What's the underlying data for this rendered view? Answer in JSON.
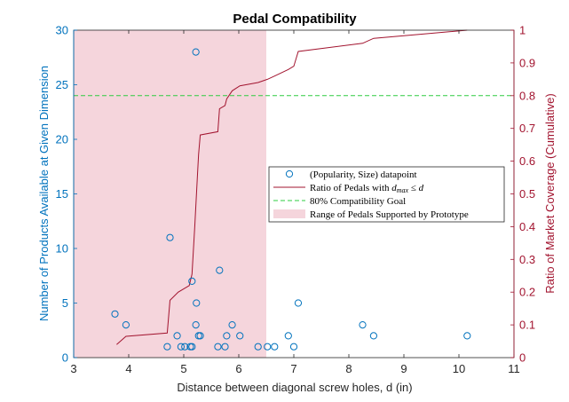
{
  "chart_data": {
    "type": "scatter",
    "title": "Pedal Compatibility",
    "xlabel": "Distance between diagonal screw holes, d (in)",
    "ylabel_left": "Number of Products Available at Given Dimension",
    "ylabel_right": "Ratio of Market Coverage (Cumulative)",
    "xlim": [
      3,
      11
    ],
    "ylim_left": [
      0,
      30
    ],
    "ylim_right": [
      0,
      1
    ],
    "x_ticks": [
      3,
      4,
      5,
      6,
      7,
      8,
      9,
      10,
      11
    ],
    "y_left_ticks": [
      0,
      5,
      10,
      15,
      20,
      25,
      30
    ],
    "y_right_ticks": [
      0,
      0.1,
      0.2,
      0.3,
      0.4,
      0.5,
      0.6,
      0.7,
      0.8,
      0.9,
      1
    ],
    "grid": false,
    "legend_placement": "center-right",
    "colors": {
      "left_axis": "#0072BD",
      "right_axis": "#A2142F",
      "goal_line": "#2ECC40",
      "support_region": "#F5D5DC"
    },
    "supported_range": {
      "name": "Range of Pedals Supported by Prototype",
      "x_range": [
        3,
        6.5
      ]
    },
    "goal": {
      "name": "80% Compatibility Goal",
      "value": 0.8
    },
    "series": [
      {
        "name": "(Popularity, Size) datapoint",
        "axis": "left",
        "points": [
          {
            "x": 3.75,
            "y": 4
          },
          {
            "x": 3.95,
            "y": 3
          },
          {
            "x": 4.7,
            "y": 1
          },
          {
            "x": 4.75,
            "y": 11
          },
          {
            "x": 4.88,
            "y": 2
          },
          {
            "x": 4.95,
            "y": 1
          },
          {
            "x": 5.02,
            "y": 1
          },
          {
            "x": 5.12,
            "y": 1
          },
          {
            "x": 5.15,
            "y": 7
          },
          {
            "x": 5.15,
            "y": 1
          },
          {
            "x": 5.22,
            "y": 3
          },
          {
            "x": 5.23,
            "y": 5
          },
          {
            "x": 5.22,
            "y": 28
          },
          {
            "x": 5.27,
            "y": 2
          },
          {
            "x": 5.3,
            "y": 2
          },
          {
            "x": 5.62,
            "y": 1
          },
          {
            "x": 5.65,
            "y": 8
          },
          {
            "x": 5.75,
            "y": 1
          },
          {
            "x": 5.78,
            "y": 2
          },
          {
            "x": 5.88,
            "y": 3
          },
          {
            "x": 6.02,
            "y": 2
          },
          {
            "x": 6.35,
            "y": 1
          },
          {
            "x": 6.52,
            "y": 1
          },
          {
            "x": 6.65,
            "y": 1
          },
          {
            "x": 6.9,
            "y": 2
          },
          {
            "x": 7.0,
            "y": 1
          },
          {
            "x": 7.08,
            "y": 5
          },
          {
            "x": 8.25,
            "y": 3
          },
          {
            "x": 8.45,
            "y": 2
          },
          {
            "x": 10.15,
            "y": 2
          }
        ]
      },
      {
        "name": "Ratio of Pedals with d_max ≤ d",
        "axis": "right",
        "type": "line",
        "points": [
          {
            "x": 3.78,
            "y": 0.04
          },
          {
            "x": 3.95,
            "y": 0.065
          },
          {
            "x": 4.7,
            "y": 0.075
          },
          {
            "x": 4.75,
            "y": 0.175
          },
          {
            "x": 4.9,
            "y": 0.2
          },
          {
            "x": 5.1,
            "y": 0.22
          },
          {
            "x": 5.15,
            "y": 0.255
          },
          {
            "x": 5.2,
            "y": 0.4
          },
          {
            "x": 5.25,
            "y": 0.56
          },
          {
            "x": 5.27,
            "y": 0.62
          },
          {
            "x": 5.3,
            "y": 0.68
          },
          {
            "x": 5.62,
            "y": 0.69
          },
          {
            "x": 5.65,
            "y": 0.76
          },
          {
            "x": 5.75,
            "y": 0.77
          },
          {
            "x": 5.78,
            "y": 0.79
          },
          {
            "x": 5.88,
            "y": 0.815
          },
          {
            "x": 6.02,
            "y": 0.83
          },
          {
            "x": 6.35,
            "y": 0.84
          },
          {
            "x": 6.52,
            "y": 0.85
          },
          {
            "x": 6.65,
            "y": 0.86
          },
          {
            "x": 6.9,
            "y": 0.88
          },
          {
            "x": 7.0,
            "y": 0.89
          },
          {
            "x": 7.08,
            "y": 0.935
          },
          {
            "x": 8.25,
            "y": 0.96
          },
          {
            "x": 8.45,
            "y": 0.975
          },
          {
            "x": 10.15,
            "y": 1.0
          }
        ]
      }
    ]
  }
}
